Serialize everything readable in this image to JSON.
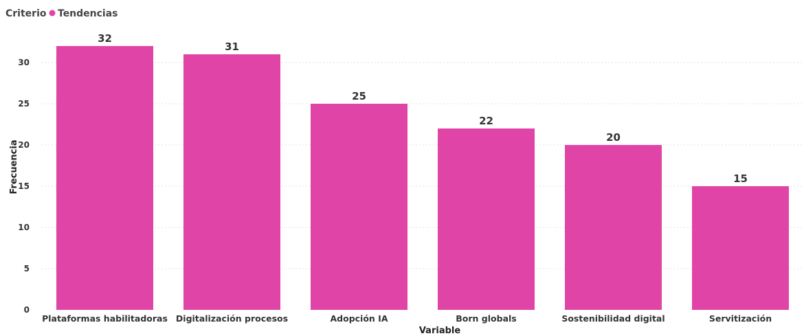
{
  "legend": {
    "title": "Criterio",
    "entry": "Tendencias"
  },
  "colors": {
    "bar": "#e044a7"
  },
  "chart_data": {
    "type": "bar",
    "categories": [
      "Plataformas habilitadoras",
      "Digitalización procesos",
      "Adopción IA",
      "Born globals",
      "Sostenibilidad digital",
      "Servitización"
    ],
    "series": [
      {
        "name": "Tendencias",
        "values": [
          32,
          31,
          25,
          22,
          20,
          15
        ]
      }
    ],
    "xlabel": "Variable",
    "ylabel": "Frecuencia",
    "ylim": [
      0,
      34
    ],
    "yticks": [
      0,
      5,
      10,
      15,
      20,
      25,
      30
    ],
    "grid": true,
    "legend_position": "top-left",
    "data_labels": true
  }
}
